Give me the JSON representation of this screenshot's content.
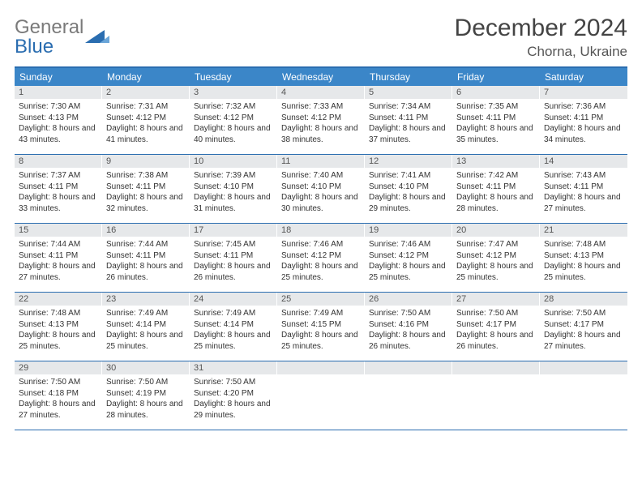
{
  "logo": {
    "part1": "General",
    "part2": "Blue"
  },
  "title": "December 2024",
  "location": "Chorna, Ukraine",
  "colors": {
    "header_bg": "#3b86c8",
    "border": "#2a6db0",
    "daynum_bg": "#e6e8ea",
    "text": "#333333",
    "logo_gray": "#7a7a7a",
    "logo_blue": "#2a6db0"
  },
  "weekdays": [
    "Sunday",
    "Monday",
    "Tuesday",
    "Wednesday",
    "Thursday",
    "Friday",
    "Saturday"
  ],
  "layout": {
    "columns": 7,
    "rows": 5
  },
  "days": [
    {
      "n": "1",
      "sunrise": "7:30 AM",
      "sunset": "4:13 PM",
      "daylight": "8 hours and 43 minutes."
    },
    {
      "n": "2",
      "sunrise": "7:31 AM",
      "sunset": "4:12 PM",
      "daylight": "8 hours and 41 minutes."
    },
    {
      "n": "3",
      "sunrise": "7:32 AM",
      "sunset": "4:12 PM",
      "daylight": "8 hours and 40 minutes."
    },
    {
      "n": "4",
      "sunrise": "7:33 AM",
      "sunset": "4:12 PM",
      "daylight": "8 hours and 38 minutes."
    },
    {
      "n": "5",
      "sunrise": "7:34 AM",
      "sunset": "4:11 PM",
      "daylight": "8 hours and 37 minutes."
    },
    {
      "n": "6",
      "sunrise": "7:35 AM",
      "sunset": "4:11 PM",
      "daylight": "8 hours and 35 minutes."
    },
    {
      "n": "7",
      "sunrise": "7:36 AM",
      "sunset": "4:11 PM",
      "daylight": "8 hours and 34 minutes."
    },
    {
      "n": "8",
      "sunrise": "7:37 AM",
      "sunset": "4:11 PM",
      "daylight": "8 hours and 33 minutes."
    },
    {
      "n": "9",
      "sunrise": "7:38 AM",
      "sunset": "4:11 PM",
      "daylight": "8 hours and 32 minutes."
    },
    {
      "n": "10",
      "sunrise": "7:39 AM",
      "sunset": "4:10 PM",
      "daylight": "8 hours and 31 minutes."
    },
    {
      "n": "11",
      "sunrise": "7:40 AM",
      "sunset": "4:10 PM",
      "daylight": "8 hours and 30 minutes."
    },
    {
      "n": "12",
      "sunrise": "7:41 AM",
      "sunset": "4:10 PM",
      "daylight": "8 hours and 29 minutes."
    },
    {
      "n": "13",
      "sunrise": "7:42 AM",
      "sunset": "4:11 PM",
      "daylight": "8 hours and 28 minutes."
    },
    {
      "n": "14",
      "sunrise": "7:43 AM",
      "sunset": "4:11 PM",
      "daylight": "8 hours and 27 minutes."
    },
    {
      "n": "15",
      "sunrise": "7:44 AM",
      "sunset": "4:11 PM",
      "daylight": "8 hours and 27 minutes."
    },
    {
      "n": "16",
      "sunrise": "7:44 AM",
      "sunset": "4:11 PM",
      "daylight": "8 hours and 26 minutes."
    },
    {
      "n": "17",
      "sunrise": "7:45 AM",
      "sunset": "4:11 PM",
      "daylight": "8 hours and 26 minutes."
    },
    {
      "n": "18",
      "sunrise": "7:46 AM",
      "sunset": "4:12 PM",
      "daylight": "8 hours and 25 minutes."
    },
    {
      "n": "19",
      "sunrise": "7:46 AM",
      "sunset": "4:12 PM",
      "daylight": "8 hours and 25 minutes."
    },
    {
      "n": "20",
      "sunrise": "7:47 AM",
      "sunset": "4:12 PM",
      "daylight": "8 hours and 25 minutes."
    },
    {
      "n": "21",
      "sunrise": "7:48 AM",
      "sunset": "4:13 PM",
      "daylight": "8 hours and 25 minutes."
    },
    {
      "n": "22",
      "sunrise": "7:48 AM",
      "sunset": "4:13 PM",
      "daylight": "8 hours and 25 minutes."
    },
    {
      "n": "23",
      "sunrise": "7:49 AM",
      "sunset": "4:14 PM",
      "daylight": "8 hours and 25 minutes."
    },
    {
      "n": "24",
      "sunrise": "7:49 AM",
      "sunset": "4:14 PM",
      "daylight": "8 hours and 25 minutes."
    },
    {
      "n": "25",
      "sunrise": "7:49 AM",
      "sunset": "4:15 PM",
      "daylight": "8 hours and 25 minutes."
    },
    {
      "n": "26",
      "sunrise": "7:50 AM",
      "sunset": "4:16 PM",
      "daylight": "8 hours and 26 minutes."
    },
    {
      "n": "27",
      "sunrise": "7:50 AM",
      "sunset": "4:17 PM",
      "daylight": "8 hours and 26 minutes."
    },
    {
      "n": "28",
      "sunrise": "7:50 AM",
      "sunset": "4:17 PM",
      "daylight": "8 hours and 27 minutes."
    },
    {
      "n": "29",
      "sunrise": "7:50 AM",
      "sunset": "4:18 PM",
      "daylight": "8 hours and 27 minutes."
    },
    {
      "n": "30",
      "sunrise": "7:50 AM",
      "sunset": "4:19 PM",
      "daylight": "8 hours and 28 minutes."
    },
    {
      "n": "31",
      "sunrise": "7:50 AM",
      "sunset": "4:20 PM",
      "daylight": "8 hours and 29 minutes."
    }
  ],
  "labels": {
    "sunrise": "Sunrise: ",
    "sunset": "Sunset: ",
    "daylight": "Daylight: "
  }
}
